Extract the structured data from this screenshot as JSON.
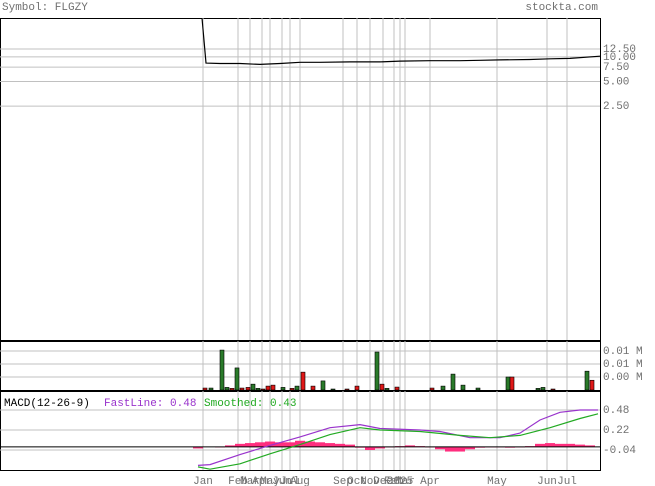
{
  "chart_data": [
    {
      "type": "line",
      "title": "Symbol: FLGZY",
      "source": "stockta.com",
      "log_scale": true,
      "xlim": [
        0,
        120
      ],
      "ylim": [
        0.0034,
        30
      ],
      "yticks": [
        {
          "value": 12.5,
          "label": "12.50"
        },
        {
          "value": 10,
          "label": "10.00"
        },
        {
          "value": 7.5,
          "label": "7.50"
        },
        {
          "value": 5,
          "label": "5.00"
        },
        {
          "value": 2.5,
          "label": "2.50"
        }
      ],
      "grid": true,
      "series": [
        {
          "color": "#000000",
          "x": [
            40.4,
            41.2,
            44,
            48,
            52,
            56,
            60,
            64,
            70,
            76,
            80,
            86,
            92,
            96,
            100,
            106,
            110,
            114,
            120
          ],
          "values": [
            30,
            8.4,
            8.3,
            8.3,
            8.1,
            8.3,
            8.6,
            8.6,
            8.7,
            8.7,
            8.9,
            9.0,
            9.0,
            9.1,
            9.2,
            9.3,
            9.5,
            9.6,
            10.2
          ]
        }
      ]
    },
    {
      "type": "bar",
      "xlim": [
        0,
        120
      ],
      "ylim": [
        0,
        0.0151
      ],
      "yticks": [
        {
          "value": 0.012,
          "label": "0.01 M"
        },
        {
          "value": 0.008,
          "label": "0.01 M"
        },
        {
          "value": 0.004,
          "label": "0.00 M"
        }
      ],
      "grid": true,
      "series": [
        {
          "color": "#2a7a2a",
          "x": [
            42.2,
            44.4,
            45.4,
            47.4,
            50.6,
            51.6,
            56.6,
            59.4,
            64.6,
            66.6,
            75.4,
            77.4,
            88.6,
            90.6,
            92.6,
            95.6,
            101.6,
            107.6,
            108.6,
            117.4
          ],
          "values": [
            0.0006,
            0.0123,
            0.0008,
            0.0068,
            0.0018,
            0.0005,
            0.0008,
            0.0012,
            0.0028,
            0.0003,
            0.0117,
            0.0005,
            0.0012,
            0.0049,
            0.0015,
            0.0006,
            0.004,
            0.0005,
            0.0008,
            0.0058
          ]
        },
        {
          "color": "#e01818",
          "x": [
            41,
            46.4,
            48.4,
            49.6,
            52.6,
            53.6,
            54.6,
            58.4,
            60.6,
            62.6,
            69.4,
            71.4,
            76.4,
            79.4,
            86.4,
            102.4,
            110.6,
            118.4
          ],
          "values": [
            0.0006,
            0.0005,
            0.0006,
            0.0008,
            0.0003,
            0.0012,
            0.0015,
            0.0005,
            0.0055,
            0.0012,
            0.0003,
            0.0012,
            0.0018,
            0.0009,
            0.0006,
            0.004,
            0.0003,
            0.003
          ]
        }
      ]
    },
    {
      "type": "macd",
      "title": "MACD(12-26-9)",
      "xlim": [
        0,
        120
      ],
      "ylim": [
        -0.3,
        0.727
      ],
      "yticks": [
        0.48,
        0.22,
        -0.04
      ],
      "grid": true,
      "xticks": [
        {
          "value": 40.6,
          "label": "Jan"
        },
        {
          "value": 47.6,
          "label": "Feb"
        },
        {
          "value": 50,
          "label": "Mar"
        },
        {
          "value": 52.4,
          "label": "Apr"
        },
        {
          "value": 54,
          "label": "May"
        },
        {
          "value": 56.4,
          "label": "Jun"
        },
        {
          "value": 58,
          "label": "Jul"
        },
        {
          "value": 60,
          "label": "Aug"
        },
        {
          "value": 68.6,
          "label": "Sep"
        },
        {
          "value": 71.4,
          "label": "Oct"
        },
        {
          "value": 74,
          "label": "Nov"
        },
        {
          "value": 76.6,
          "label": "Dec"
        },
        {
          "value": 78.8,
          "label": "Feb"
        },
        {
          "value": 80,
          "label": "2025"
        },
        {
          "value": 81,
          "label": "Mar"
        },
        {
          "value": 86,
          "label": "Apr"
        },
        {
          "value": 99.4,
          "label": "May"
        },
        {
          "value": 109.4,
          "label": "Jun"
        },
        {
          "value": 113.4,
          "label": "Jul"
        }
      ],
      "series": [
        {
          "kind": "bar",
          "color": "#ff2e7e",
          "x": [
            39.6,
            44,
            46,
            48,
            50,
            52,
            54,
            56,
            58,
            60,
            62,
            64,
            66,
            68,
            70,
            72,
            74,
            76,
            78,
            80,
            82,
            84,
            86,
            88,
            90,
            92,
            94,
            96,
            98,
            100,
            102,
            104,
            106,
            108,
            110,
            112,
            114,
            116,
            118
          ],
          "values": [
            -0.02,
            0,
            0.02,
            0.04,
            0.05,
            0.06,
            0.07,
            0.06,
            0.06,
            0.08,
            0.07,
            0.06,
            0.05,
            0.04,
            0.03,
            -0.01,
            -0.04,
            -0.02,
            0,
            0.01,
            0.02,
            0.01,
            0,
            -0.03,
            -0.06,
            -0.06,
            -0.03,
            -0.01,
            0,
            0,
            -0.01,
            0,
            0.01,
            0.04,
            0.05,
            0.04,
            0.04,
            0.03,
            0.02
          ]
        },
        {
          "kind": "line",
          "name": "FastLine: 0.48",
          "color": "#9933cc",
          "x": [
            39.6,
            42,
            48,
            54,
            60,
            66,
            72,
            76,
            84,
            88,
            94,
            100,
            104,
            108,
            112,
            116,
            119.6
          ],
          "values": [
            -0.24,
            -0.23,
            -0.1,
            0.02,
            0.13,
            0.25,
            0.29,
            0.24,
            0.22,
            0.2,
            0.12,
            0.12,
            0.18,
            0.35,
            0.45,
            0.48,
            0.48
          ]
        },
        {
          "kind": "line",
          "name": "Smoothed: 0.43",
          "color": "#22aa22",
          "x": [
            39.6,
            42,
            48,
            54,
            60,
            66,
            72,
            76,
            84,
            92,
            98,
            104,
            110,
            116,
            119.6
          ],
          "values": [
            -0.26,
            -0.29,
            -0.22,
            -0.09,
            0.03,
            0.16,
            0.25,
            0.22,
            0.2,
            0.15,
            0.12,
            0.15,
            0.25,
            0.37,
            0.43
          ]
        }
      ]
    }
  ]
}
